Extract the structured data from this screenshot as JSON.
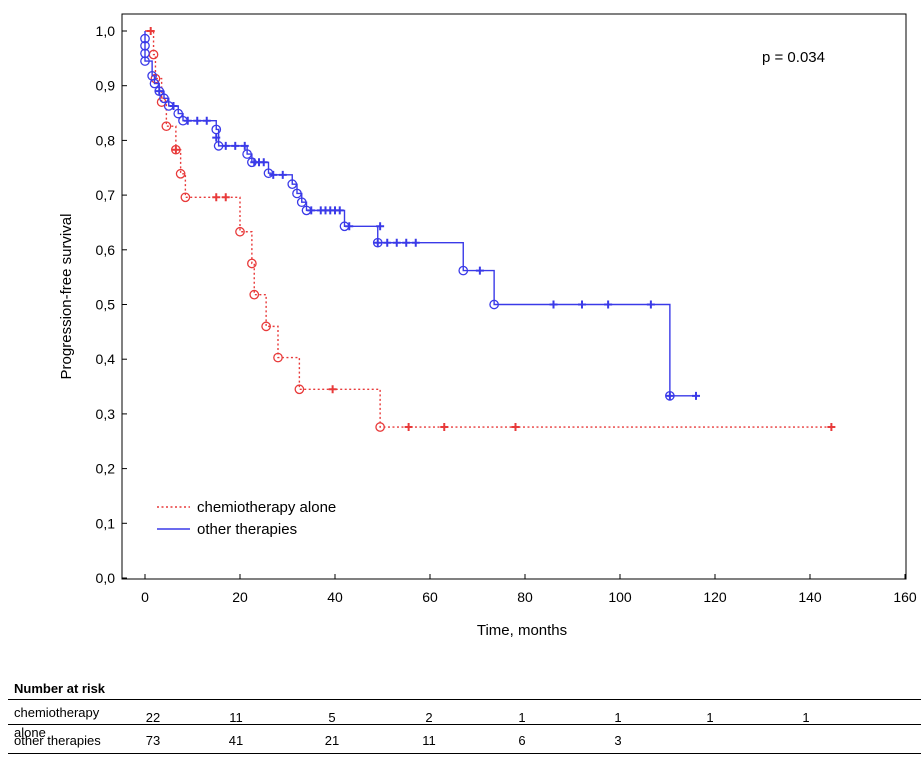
{
  "chart_data": {
    "type": "line",
    "subtype": "kaplan-meier-step",
    "ylabel": "Progression-free survival",
    "xlabel": "Time, months",
    "xlim": [
      -5,
      160
    ],
    "ylim": [
      0,
      1.05
    ],
    "xticks": [
      0,
      20,
      40,
      60,
      80,
      100,
      120,
      140,
      160
    ],
    "yticks": [
      0.0,
      0.1,
      0.2,
      0.3,
      0.4,
      0.5,
      0.6,
      0.7,
      0.8,
      0.9,
      1.0
    ],
    "ytick_labels": [
      "0,0",
      "0,1",
      "0,2",
      "0,3",
      "0,4",
      "0,5",
      "0,6",
      "0,7",
      "0,8",
      "0,9",
      "1,0"
    ],
    "annotation": "p = 0.034",
    "series": [
      {
        "name": "chemiotherapy alone",
        "color": "#e83a3a",
        "style": "dotted",
        "steps": [
          [
            0,
            1.0
          ],
          [
            1.8,
            0.957
          ],
          [
            2.2,
            0.913
          ],
          [
            3.5,
            0.87
          ],
          [
            4.5,
            0.826
          ],
          [
            6.5,
            0.783
          ],
          [
            7.5,
            0.739
          ],
          [
            8.5,
            0.696
          ],
          [
            20,
            0.633
          ],
          [
            22.5,
            0.575
          ],
          [
            23,
            0.518
          ],
          [
            25.5,
            0.46
          ],
          [
            28,
            0.403
          ],
          [
            32.5,
            0.345
          ],
          [
            49.5,
            0.276
          ],
          [
            145,
            0.276
          ]
        ],
        "events": [
          [
            1.8,
            0.957
          ],
          [
            2.2,
            0.913
          ],
          [
            3.5,
            0.87
          ],
          [
            4.5,
            0.826
          ],
          [
            6.5,
            0.783
          ],
          [
            7.5,
            0.739
          ],
          [
            8.5,
            0.696
          ],
          [
            20,
            0.633
          ],
          [
            22.5,
            0.575
          ],
          [
            23,
            0.518
          ],
          [
            25.5,
            0.46
          ],
          [
            28,
            0.403
          ],
          [
            32.5,
            0.345
          ],
          [
            49.5,
            0.276
          ]
        ],
        "censored": [
          [
            1.2,
            1.0
          ],
          [
            6.5,
            0.783
          ],
          [
            15,
            0.696
          ],
          [
            17,
            0.696
          ],
          [
            39.5,
            0.345
          ],
          [
            55.5,
            0.276
          ],
          [
            63,
            0.276
          ],
          [
            78,
            0.276
          ],
          [
            144.5,
            0.276
          ]
        ]
      },
      {
        "name": "other therapies",
        "color": "#3a3ae8",
        "style": "solid",
        "steps": [
          [
            0,
            1.0
          ],
          [
            0,
            0.986
          ],
          [
            0,
            0.973
          ],
          [
            0,
            0.959
          ],
          [
            0,
            0.945
          ],
          [
            1.5,
            0.918
          ],
          [
            2,
            0.904
          ],
          [
            3,
            0.89
          ],
          [
            4,
            0.877
          ],
          [
            5,
            0.863
          ],
          [
            7,
            0.849
          ],
          [
            8,
            0.836
          ],
          [
            15,
            0.82
          ],
          [
            15.5,
            0.79
          ],
          [
            21.5,
            0.775
          ],
          [
            22.5,
            0.76
          ],
          [
            26,
            0.74
          ],
          [
            27,
            0.737
          ],
          [
            31,
            0.72
          ],
          [
            32,
            0.703
          ],
          [
            33,
            0.687
          ],
          [
            34,
            0.672
          ],
          [
            42,
            0.643
          ],
          [
            49,
            0.613
          ],
          [
            67,
            0.562
          ],
          [
            73.5,
            0.5
          ],
          [
            110.5,
            0.333
          ],
          [
            116,
            0.333
          ]
        ],
        "events": [
          [
            0,
            0.986
          ],
          [
            0,
            0.973
          ],
          [
            0,
            0.959
          ],
          [
            0,
            0.945
          ],
          [
            1.5,
            0.918
          ],
          [
            2,
            0.904
          ],
          [
            3,
            0.89
          ],
          [
            4,
            0.877
          ],
          [
            5,
            0.863
          ],
          [
            7,
            0.849
          ],
          [
            8,
            0.836
          ],
          [
            15,
            0.82
          ],
          [
            15.5,
            0.79
          ],
          [
            21.5,
            0.775
          ],
          [
            22.5,
            0.76
          ],
          [
            26,
            0.74
          ],
          [
            31,
            0.72
          ],
          [
            32,
            0.703
          ],
          [
            33,
            0.687
          ],
          [
            34,
            0.672
          ],
          [
            42,
            0.643
          ],
          [
            49,
            0.613
          ],
          [
            67,
            0.562
          ],
          [
            73.5,
            0.5
          ],
          [
            110.5,
            0.333
          ]
        ],
        "censored": [
          [
            3,
            0.89
          ],
          [
            6,
            0.863
          ],
          [
            9,
            0.836
          ],
          [
            11,
            0.836
          ],
          [
            13,
            0.836
          ],
          [
            15,
            0.805
          ],
          [
            17,
            0.79
          ],
          [
            19,
            0.79
          ],
          [
            21,
            0.79
          ],
          [
            23,
            0.76
          ],
          [
            24,
            0.76
          ],
          [
            25,
            0.76
          ],
          [
            27,
            0.737
          ],
          [
            29,
            0.737
          ],
          [
            35,
            0.672
          ],
          [
            37,
            0.672
          ],
          [
            38,
            0.672
          ],
          [
            39,
            0.672
          ],
          [
            40,
            0.672
          ],
          [
            41,
            0.672
          ],
          [
            43,
            0.643
          ],
          [
            49.5,
            0.643
          ],
          [
            49,
            0.613
          ],
          [
            51,
            0.613
          ],
          [
            53,
            0.613
          ],
          [
            55,
            0.613
          ],
          [
            57,
            0.613
          ],
          [
            70.5,
            0.562
          ],
          [
            86,
            0.5
          ],
          [
            92,
            0.5
          ],
          [
            97.5,
            0.5
          ],
          [
            106.5,
            0.5
          ],
          [
            110.5,
            0.333
          ],
          [
            116,
            0.333
          ]
        ]
      }
    ],
    "legend": {
      "position": "bottom-left",
      "entries": [
        "chemiotherapy alone",
        "other therapies"
      ]
    }
  },
  "risk_table": {
    "title": "Number at risk",
    "times": [
      0,
      20,
      40,
      60,
      80,
      100,
      120,
      140
    ],
    "rows": [
      {
        "label": "chemiotherapy alone",
        "values": [
          "22",
          "11",
          "5",
          "2",
          "1",
          "1",
          "1",
          "1"
        ]
      },
      {
        "label": "other therapies",
        "values": [
          "73",
          "41",
          "21",
          "11",
          "6",
          "3"
        ]
      }
    ]
  }
}
